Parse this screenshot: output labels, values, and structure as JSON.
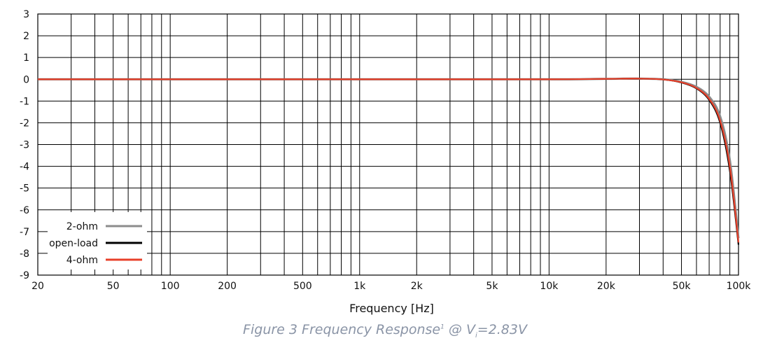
{
  "chart_data": {
    "type": "line",
    "xlabel": "Frequency [Hz]",
    "ylabel": "",
    "x_scale": "log",
    "xlim": [
      20,
      100000
    ],
    "ylim": [
      -9,
      3
    ],
    "grid": true,
    "legend_position": "bottom-left",
    "x_ticks": [
      20,
      30,
      40,
      50,
      60,
      70,
      80,
      90,
      100,
      200,
      300,
      400,
      500,
      600,
      700,
      800,
      900,
      1000,
      2000,
      3000,
      4000,
      5000,
      6000,
      7000,
      8000,
      9000,
      10000,
      20000,
      30000,
      40000,
      50000,
      60000,
      70000,
      80000,
      90000,
      100000
    ],
    "x_tick_labels": [
      {
        "value": 20,
        "label": "20"
      },
      {
        "value": 50,
        "label": "50"
      },
      {
        "value": 100,
        "label": "100"
      },
      {
        "value": 200,
        "label": "200"
      },
      {
        "value": 500,
        "label": "500"
      },
      {
        "value": 1000,
        "label": "1k"
      },
      {
        "value": 2000,
        "label": "2k"
      },
      {
        "value": 5000,
        "label": "5k"
      },
      {
        "value": 10000,
        "label": "10k"
      },
      {
        "value": 20000,
        "label": "20k"
      },
      {
        "value": 50000,
        "label": "50k"
      },
      {
        "value": 100000,
        "label": "100k"
      }
    ],
    "y_ticks": [
      3,
      2,
      1,
      0,
      -1,
      -2,
      -3,
      -4,
      -5,
      -6,
      -7,
      -8,
      -9
    ],
    "series": [
      {
        "name": "2-ohm",
        "color": "#8c8c8c",
        "x": [
          20,
          100,
          1000,
          10000,
          20000,
          30000,
          40000,
          50000,
          60000,
          70000,
          80000,
          90000,
          100000
        ],
        "values": [
          0,
          0,
          0,
          0,
          0.02,
          0.03,
          0.0,
          -0.12,
          -0.35,
          -0.8,
          -1.7,
          -3.7,
          -7.3
        ]
      },
      {
        "name": "open-load",
        "color": "#000000",
        "x": [
          20,
          100,
          1000,
          10000,
          20000,
          30000,
          40000,
          50000,
          60000,
          70000,
          80000,
          90000,
          100000
        ],
        "values": [
          0,
          0,
          0,
          0,
          0.02,
          0.03,
          -0.01,
          -0.15,
          -0.42,
          -0.95,
          -2.0,
          -4.2,
          -7.6
        ]
      },
      {
        "name": "4-ohm",
        "color": "#e8402a",
        "x": [
          20,
          100,
          1000,
          10000,
          20000,
          30000,
          40000,
          50000,
          60000,
          70000,
          80000,
          90000,
          100000
        ],
        "values": [
          0,
          0,
          0,
          0,
          0.02,
          0.03,
          -0.01,
          -0.14,
          -0.4,
          -0.9,
          -1.9,
          -4.0,
          -7.5
        ]
      }
    ]
  },
  "caption": {
    "prefix": "Figure 3 Frequency Response",
    "footnote_mark": "1",
    "middle": " @ V",
    "subscript": "i",
    "suffix": "=2.83V"
  }
}
